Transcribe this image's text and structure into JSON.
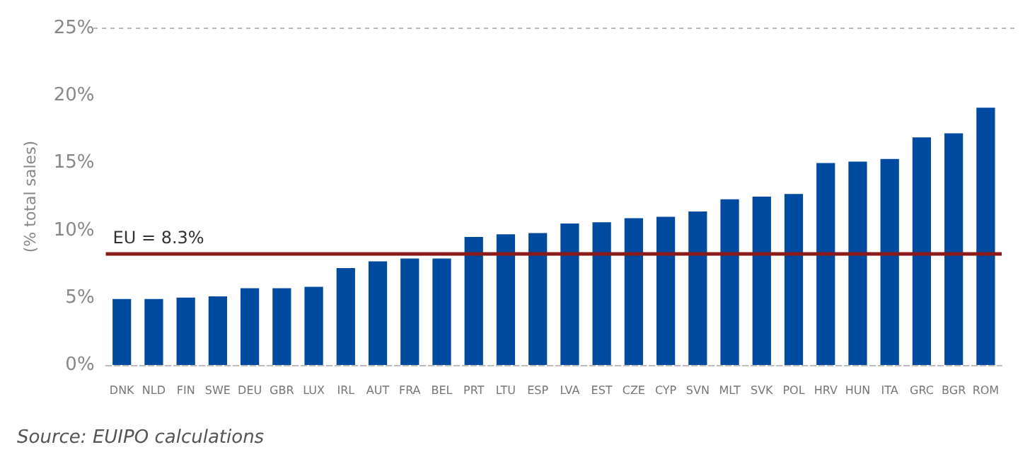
{
  "chart_data": {
    "type": "bar",
    "ylabel": "(% total sales)",
    "categories": [
      "DNK",
      "NLD",
      "FIN",
      "SWE",
      "DEU",
      "GBR",
      "LUX",
      "IRL",
      "AUT",
      "FRA",
      "BEL",
      "PRT",
      "LTU",
      "ESP",
      "LVA",
      "EST",
      "CZE",
      "CYP",
      "SVN",
      "MLT",
      "SVK",
      "POL",
      "HRV",
      "HUN",
      "ITA",
      "GRC",
      "BGR",
      "ROM"
    ],
    "values": [
      4.9,
      4.9,
      5.0,
      5.1,
      5.7,
      5.7,
      5.8,
      7.2,
      7.7,
      7.9,
      7.9,
      9.5,
      9.7,
      9.8,
      10.5,
      10.6,
      10.9,
      11.0,
      11.4,
      12.3,
      12.5,
      12.7,
      15.0,
      15.1,
      15.3,
      16.9,
      17.2,
      19.1
    ],
    "color": "#004a9f",
    "ylim": [
      0,
      25
    ],
    "yticks": [
      {
        "value": 0,
        "label": "0%"
      },
      {
        "value": 5,
        "label": "5%"
      },
      {
        "value": 10,
        "label": "10%"
      },
      {
        "value": 15,
        "label": "15%"
      },
      {
        "value": 20,
        "label": "20%"
      },
      {
        "value": 25,
        "label": "25%"
      }
    ],
    "ref_lines": [
      {
        "axis": "y",
        "value": 8.3,
        "label": "EU = 8.3%",
        "color": "#8b1a1a"
      }
    ],
    "annotations": [
      "Source: EUIPO calculations"
    ],
    "grid": false
  }
}
